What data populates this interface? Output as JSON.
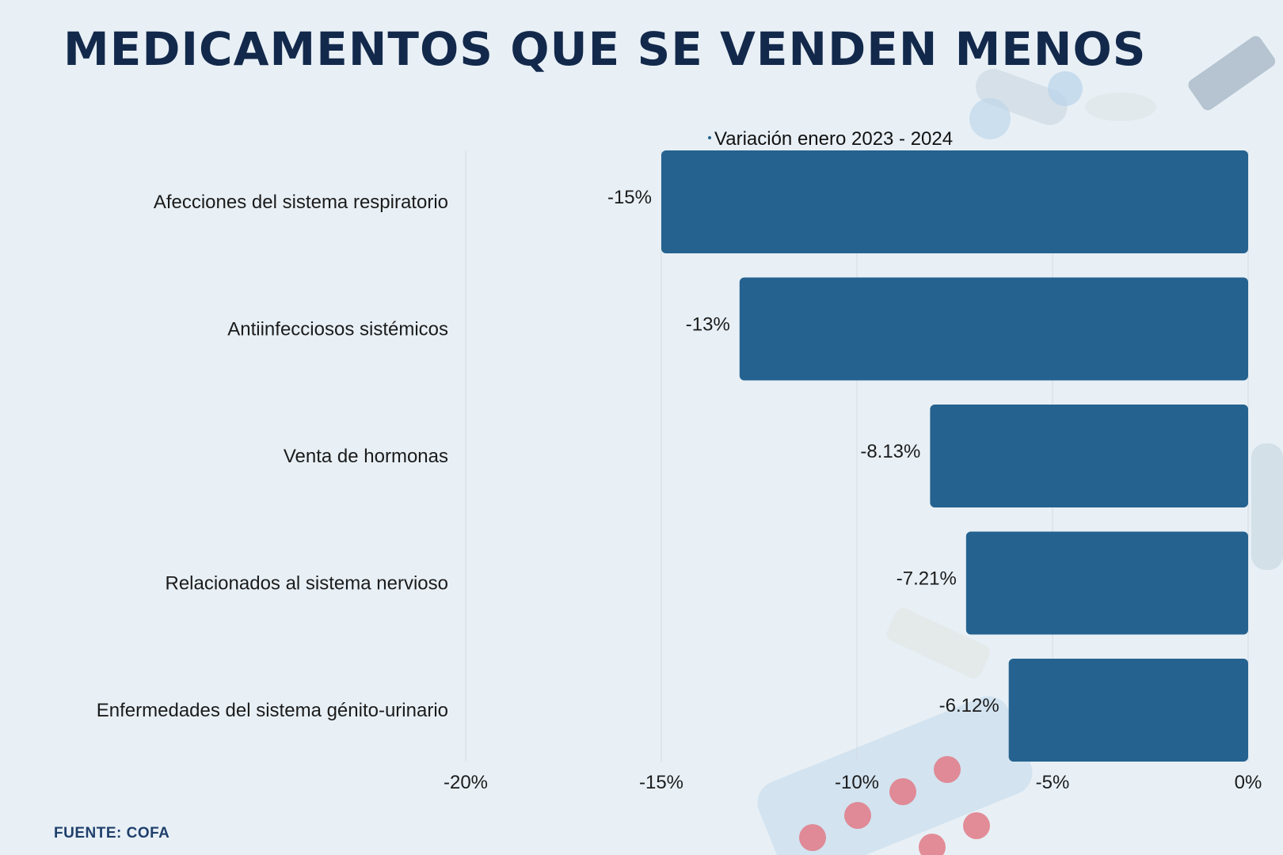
{
  "header": {
    "title": "MEDICAMENTOS QUE SE VENDEN MENOS"
  },
  "footer": {
    "source": "FUENTE: COFA"
  },
  "colors": {
    "bar": "#25628f",
    "background": "#e8f0f6",
    "grid": "#d3dbe2",
    "title": "#13294b"
  },
  "chart_data": {
    "type": "bar",
    "orientation": "horizontal",
    "title": "MEDICAMENTOS QUE SE VENDEN MENOS",
    "legend": [
      "Variación enero 2023 - 2024"
    ],
    "legend_position": "top",
    "categories": [
      "Afecciones del sistema respiratorio",
      "Antiinfecciosos sistémicos",
      "Venta de hormonas",
      "Relacionados al sistema nervioso",
      "Enfermedades del sistema génito-urinario"
    ],
    "series": [
      {
        "name": "Variación enero 2023 - 2024",
        "values": [
          -15,
          -13,
          -8.13,
          -7.21,
          -6.12
        ]
      }
    ],
    "data_labels": [
      "-15%",
      "-13%",
      "-8.13%",
      "-7.21%",
      "-6.12%"
    ],
    "xlim": [
      -20,
      0
    ],
    "xticks": [
      -20,
      -15,
      -10,
      -5,
      0
    ],
    "xtick_labels": [
      "-20%",
      "-15%",
      "-10%",
      "-5%",
      "0%"
    ],
    "grid": true,
    "source": "FUENTE: COFA"
  }
}
